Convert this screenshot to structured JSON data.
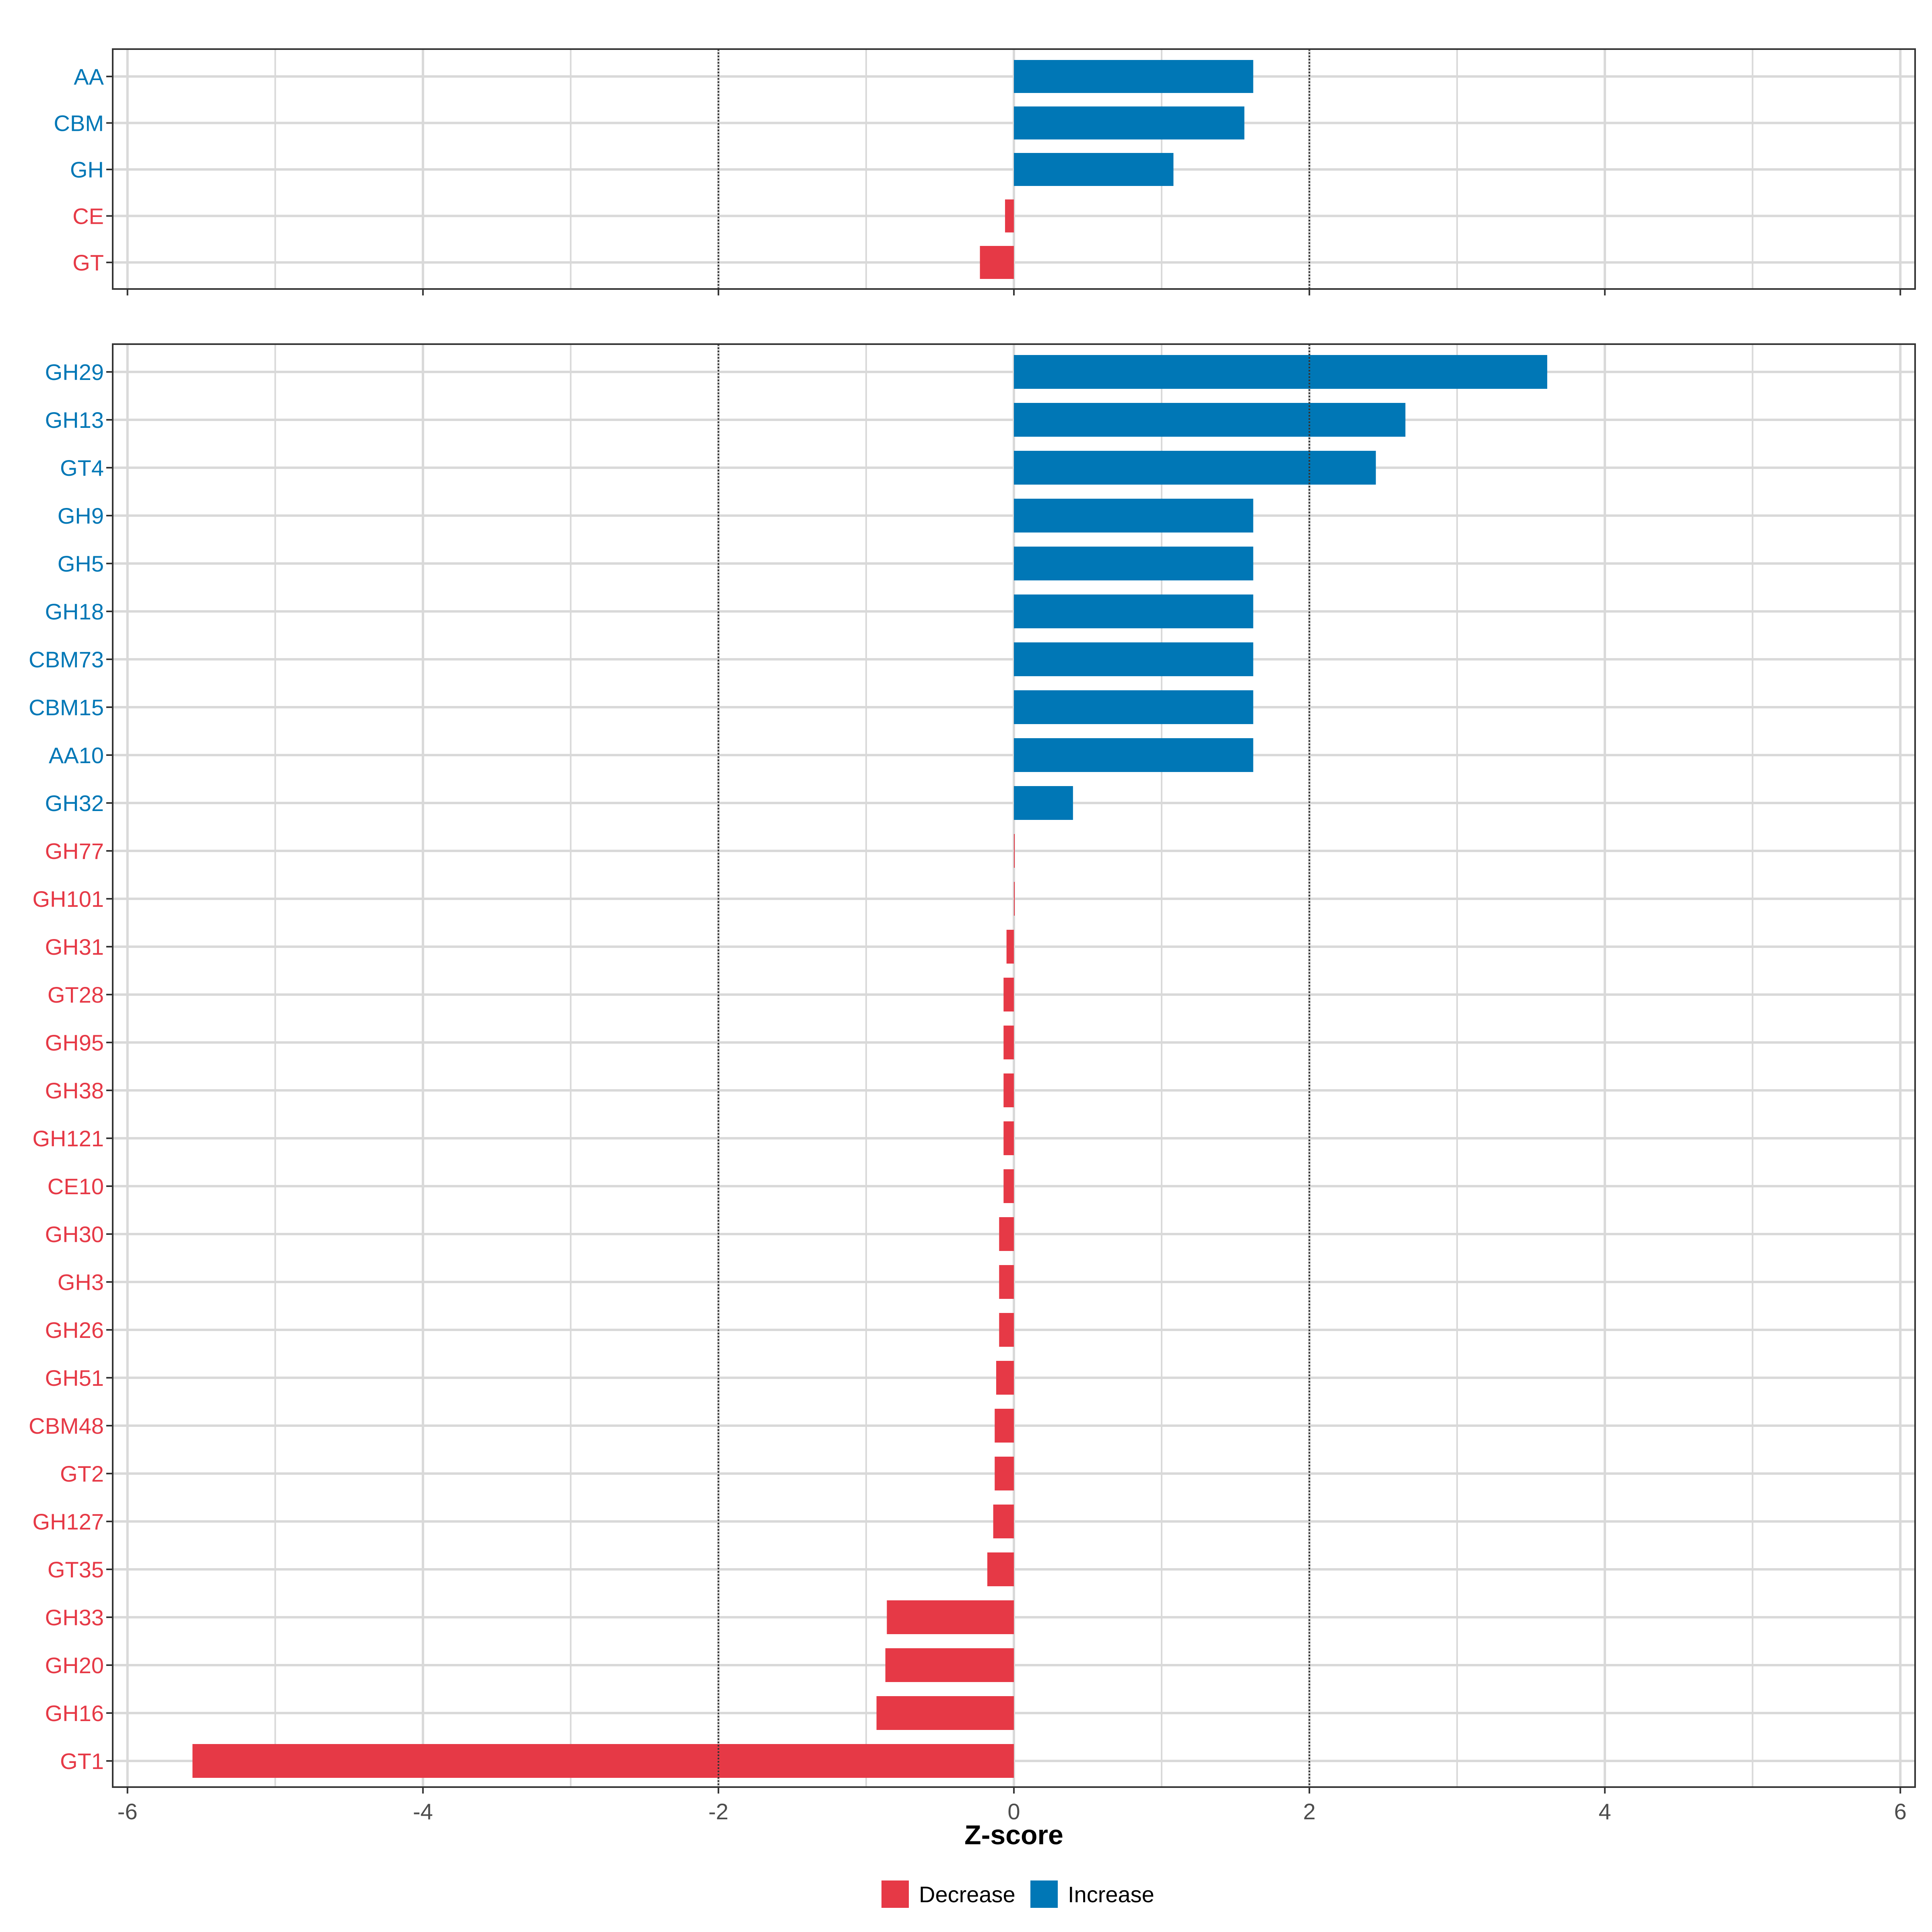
{
  "colors": {
    "decrease": "#e63946",
    "increase": "#0077b6",
    "grid": "#d9d9d9",
    "panel_border": "#333333",
    "threshold_line": "#333333"
  },
  "chart_data": [
    {
      "type": "bar",
      "orientation": "horizontal",
      "panel": "top",
      "categories": [
        "AA",
        "CBM",
        "GH",
        "CE",
        "GT"
      ],
      "values": [
        1.62,
        1.56,
        1.08,
        -0.06,
        -0.23
      ],
      "directions": [
        "Increase",
        "Increase",
        "Increase",
        "Decrease",
        "Decrease"
      ],
      "xlim": [
        -6.1,
        6.1
      ],
      "xticks": [
        -6,
        -4,
        -2,
        0,
        2,
        4,
        6
      ],
      "reference_lines": [
        -2,
        2
      ],
      "grid": true
    },
    {
      "type": "bar",
      "orientation": "horizontal",
      "panel": "bottom",
      "categories": [
        "GH29",
        "GH13",
        "GT4",
        "GH9",
        "GH5",
        "GH18",
        "CBM73",
        "CBM15",
        "AA10",
        "GH32",
        "GH77",
        "GH101",
        "GH31",
        "GT28",
        "GH95",
        "GH38",
        "GH121",
        "CE10",
        "GH30",
        "GH3",
        "GH26",
        "GH51",
        "CBM48",
        "GT2",
        "GH127",
        "GT35",
        "GH33",
        "GH20",
        "GH16",
        "GT1"
      ],
      "values": [
        3.61,
        2.65,
        2.45,
        1.62,
        1.62,
        1.62,
        1.62,
        1.62,
        1.62,
        0.4,
        0.0,
        0.0,
        -0.05,
        -0.07,
        -0.07,
        -0.07,
        -0.07,
        -0.07,
        -0.1,
        -0.1,
        -0.1,
        -0.12,
        -0.13,
        -0.13,
        -0.14,
        -0.18,
        -0.86,
        -0.87,
        -0.93,
        -5.56
      ],
      "directions": [
        "Increase",
        "Increase",
        "Increase",
        "Increase",
        "Increase",
        "Increase",
        "Increase",
        "Increase",
        "Increase",
        "Increase",
        "Decrease",
        "Decrease",
        "Decrease",
        "Decrease",
        "Decrease",
        "Decrease",
        "Decrease",
        "Decrease",
        "Decrease",
        "Decrease",
        "Decrease",
        "Decrease",
        "Decrease",
        "Decrease",
        "Decrease",
        "Decrease",
        "Decrease",
        "Decrease",
        "Decrease",
        "Decrease"
      ],
      "xlim": [
        -6.1,
        6.1
      ],
      "xticks": [
        -6,
        -4,
        -2,
        0,
        2,
        4,
        6
      ],
      "xtick_labels": [
        "-6",
        "-4",
        "-2",
        "0",
        "2",
        "4",
        "6"
      ],
      "reference_lines": [
        -2,
        2
      ],
      "grid": true,
      "xlabel": "Z-score"
    }
  ],
  "legend": {
    "position": "bottom",
    "items": [
      {
        "label": "Decrease",
        "direction": "Decrease"
      },
      {
        "label": "Increase",
        "direction": "Increase"
      }
    ]
  }
}
